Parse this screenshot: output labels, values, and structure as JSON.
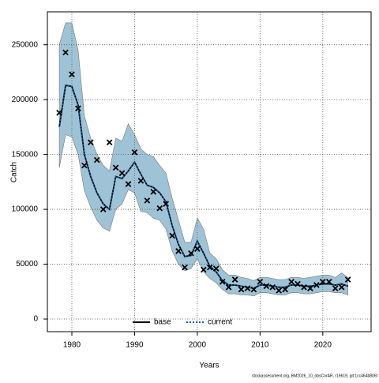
{
  "chart_data": {
    "type": "line",
    "x_label": "Years",
    "y_label": "Catch",
    "footer": "stockassessment.org, BM2026_10_obsCorAR, r19619, git:1cc464b806f",
    "x": [
      1978,
      1979,
      1980,
      1981,
      1982,
      1983,
      1984,
      1985,
      1986,
      1987,
      1988,
      1989,
      1990,
      1991,
      1992,
      1993,
      1994,
      1995,
      1996,
      1997,
      1998,
      1999,
      2000,
      2001,
      2002,
      2003,
      2004,
      2005,
      2006,
      2007,
      2008,
      2009,
      2010,
      2011,
      2012,
      2013,
      2014,
      2015,
      2016,
      2017,
      2018,
      2019,
      2020,
      2021,
      2022,
      2023,
      2024
    ],
    "series": [
      {
        "name": "base",
        "color": "#000000",
        "dash": false,
        "values": [
          175000,
          213000,
          212000,
          195000,
          150000,
          130000,
          115000,
          105000,
          100000,
          130000,
          128000,
          135000,
          143000,
          132000,
          122000,
          120000,
          115000,
          107000,
          85000,
          68000,
          57000,
          58000,
          71000,
          60000,
          48000,
          43000,
          35000,
          31000,
          31000,
          30000,
          29000,
          28000,
          31000,
          31000,
          30000,
          29000,
          29000,
          31000,
          31000,
          30000,
          30000,
          31000,
          32000,
          32000,
          31000,
          32000,
          30000
        ]
      },
      {
        "name": "current",
        "color": "#1a5a9a",
        "dash": true,
        "values": [
          175000,
          213000,
          212000,
          195000,
          150000,
          130000,
          115000,
          105000,
          100000,
          130000,
          128000,
          135000,
          143000,
          132000,
          122000,
          120000,
          115000,
          107000,
          85000,
          68000,
          57000,
          58000,
          71000,
          60000,
          48000,
          43000,
          35000,
          31000,
          31000,
          30000,
          29000,
          28000,
          31000,
          31000,
          30000,
          29000,
          29000,
          31000,
          31000,
          30000,
          30000,
          31000,
          32000,
          32000,
          31000,
          32000,
          30000
        ]
      }
    ],
    "band_color": "#9fc3d6",
    "band_upper": [
      250000,
      270000,
      270000,
      245000,
      185000,
      165000,
      150000,
      140000,
      135000,
      165000,
      162000,
      178000,
      168000,
      155000,
      150000,
      148000,
      140000,
      133000,
      110000,
      90000,
      70000,
      70000,
      92000,
      82000,
      60000,
      55000,
      45000,
      40000,
      40000,
      38000,
      37000,
      35000,
      38000,
      38000,
      37000,
      36000,
      36000,
      38000,
      38000,
      37000,
      38000,
      39000,
      40000,
      40000,
      38000,
      42000,
      38000
    ],
    "band_lower": [
      138000,
      168000,
      166000,
      150000,
      117000,
      102000,
      90000,
      83000,
      80000,
      100000,
      105000,
      118000,
      115000,
      98000,
      97000,
      92000,
      90000,
      82000,
      62000,
      50000,
      44000,
      46000,
      55000,
      43000,
      37000,
      33000,
      27000,
      23000,
      23000,
      22000,
      22000,
      21000,
      24000,
      24000,
      23000,
      22000,
      22000,
      24000,
      24000,
      23000,
      23000,
      24000,
      25000,
      25000,
      24000,
      24000,
      22000
    ],
    "observed": [
      188000,
      243000,
      223000,
      192000,
      140000,
      161000,
      145000,
      100000,
      161000,
      138000,
      133000,
      123000,
      152000,
      126000,
      108000,
      116000,
      101000,
      105000,
      76000,
      62000,
      47000,
      60000,
      64000,
      45000,
      47000,
      46000,
      34000,
      29000,
      36000,
      27000,
      28000,
      27000,
      34000,
      30000,
      29000,
      26000,
      27000,
      34000,
      32000,
      29000,
      28000,
      31000,
      34000,
      34000,
      28000,
      29000,
      36000
    ],
    "xlim": [
      1976.1,
      2027.7
    ],
    "ylim": [
      -11500,
      280000
    ],
    "xticks": [
      1980,
      1990,
      2000,
      2010,
      2020
    ],
    "yticks": [
      0,
      50000,
      100000,
      150000,
      200000,
      250000
    ],
    "grid": true,
    "legend": "bottom"
  }
}
